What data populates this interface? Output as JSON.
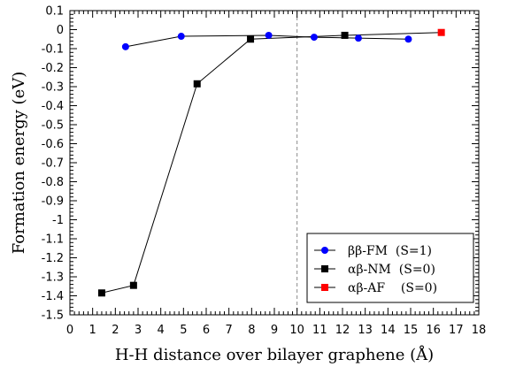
{
  "chart_data": {
    "type": "line",
    "xlabel": "H-H distance over bilayer graphene (Å)",
    "ylabel": "Formation energy (eV)",
    "xlim": [
      0,
      18
    ],
    "ylim": [
      -1.5,
      0.1
    ],
    "x_ticks_major": [
      0,
      1,
      2,
      3,
      4,
      5,
      6,
      7,
      8,
      9,
      10,
      11,
      12,
      13,
      14,
      15,
      16,
      17,
      18
    ],
    "x_tick_labels": [
      "0",
      "1",
      "2",
      "3",
      "4",
      "5",
      "6",
      "7",
      "8",
      "9",
      "10",
      "11",
      "12",
      "13",
      "14",
      "15",
      "16",
      "17",
      "18"
    ],
    "y_ticks_major": [
      0.1,
      0,
      -0.1,
      -0.2,
      -0.3,
      -0.4,
      -0.5,
      -0.6,
      -0.7,
      -0.8,
      -0.9,
      -1.0,
      -1.1,
      -1.2,
      -1.3,
      -1.4,
      -1.5
    ],
    "y_tick_labels": [
      "0.1",
      "0",
      "-0.1",
      "-0.2",
      "-0.3",
      "-0.4",
      "-0.5",
      "-0.6",
      "-0.7",
      "-0.8",
      "-0.9",
      "-1",
      "-1.1",
      "-1.2",
      "-1.3",
      "-1.4",
      "-1.5"
    ],
    "grid": false,
    "legend_position": "bottom-right",
    "vline": {
      "x": 10,
      "style": "dashed",
      "color": "#8a8a8a"
    },
    "series": [
      {
        "name": "ββ-FM  (S=1)",
        "marker": "circle",
        "color": "#0000ff",
        "points": [
          [
            2.45,
            -0.09
          ],
          [
            4.9,
            -0.035
          ],
          [
            8.75,
            -0.03
          ],
          [
            10.75,
            -0.04
          ],
          [
            12.7,
            -0.045
          ],
          [
            14.9,
            -0.05
          ]
        ]
      },
      {
        "name": "αβ-NM  (S=0)",
        "marker": "square",
        "color": "#000000",
        "points": [
          [
            1.4,
            -1.385
          ],
          [
            2.8,
            -1.345
          ],
          [
            5.6,
            -0.285
          ],
          [
            7.95,
            -0.05
          ],
          [
            12.1,
            -0.03
          ]
        ]
      },
      {
        "name": "αβ-AF    (S=0)",
        "marker": "square",
        "color": "#ff0000",
        "points": [
          [
            16.35,
            -0.015
          ]
        ]
      }
    ],
    "connector_lines": [
      {
        "color": "#000000",
        "points": [
          [
            2.45,
            -0.09
          ],
          [
            4.9,
            -0.035
          ],
          [
            8.75,
            -0.03
          ],
          [
            10.75,
            -0.04
          ],
          [
            12.7,
            -0.045
          ],
          [
            14.9,
            -0.05
          ]
        ]
      },
      {
        "color": "#000000",
        "points": [
          [
            1.4,
            -1.385
          ],
          [
            2.8,
            -1.345
          ],
          [
            5.6,
            -0.285
          ],
          [
            7.95,
            -0.05
          ],
          [
            12.1,
            -0.03
          ],
          [
            16.35,
            -0.015
          ]
        ]
      }
    ]
  }
}
